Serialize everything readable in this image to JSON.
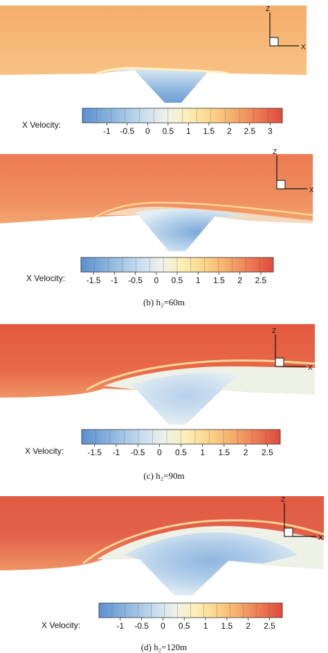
{
  "legend_label": "X Velocity:",
  "axis_labels": {
    "vertical": "Z",
    "horizontal": "X"
  },
  "colorscale": [
    "#5b8fcf",
    "#8db6de",
    "#c6dcef",
    "#eef2ea",
    "#fbf0b9",
    "#fbd58c",
    "#f5ad6b",
    "#ec7a52",
    "#de4b3d"
  ],
  "panels": [
    {
      "id": "a",
      "caption": "",
      "scale_min": -1.6,
      "scale_max": 3.3,
      "ticks": [
        "-1",
        "-0.5",
        "0",
        "0.5",
        "1",
        "1.5",
        "2",
        "2.5",
        "3"
      ],
      "tick_values": [
        -1,
        -0.5,
        0,
        0.5,
        1,
        1.5,
        2,
        2.5,
        3
      ]
    },
    {
      "id": "b",
      "caption": "(b) h₂=60m",
      "scale_min": -1.8,
      "scale_max": 2.8,
      "ticks": [
        "-1.5",
        "-1",
        "-0.5",
        "0",
        "0.5",
        "1",
        "1.5",
        "2",
        "2.5"
      ],
      "tick_values": [
        -1.5,
        -1,
        -0.5,
        0,
        0.5,
        1,
        1.5,
        2,
        2.5
      ]
    },
    {
      "id": "c",
      "caption": "(c) h₂=90m",
      "scale_min": -1.8,
      "scale_max": 2.8,
      "ticks": [
        "-1.5",
        "-1",
        "-0.5",
        "0",
        "0.5",
        "1",
        "1.5",
        "2",
        "2.5"
      ],
      "tick_values": [
        -1.5,
        -1,
        -0.5,
        0,
        0.5,
        1,
        1.5,
        2,
        2.5
      ]
    },
    {
      "id": "d",
      "caption": "(d) h₂=120m",
      "scale_min": -1.5,
      "scale_max": 2.8,
      "ticks": [
        "-1",
        "-0.5",
        "0",
        "0.5",
        "1",
        "1.5",
        "2",
        "2.5"
      ],
      "tick_values": [
        -1,
        -0.5,
        0,
        0.5,
        1,
        1.5,
        2,
        2.5
      ]
    }
  ]
}
